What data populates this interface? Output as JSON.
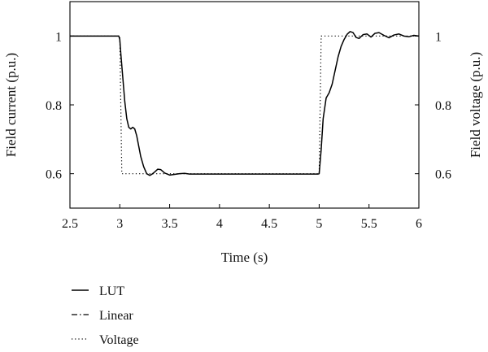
{
  "chart_data": {
    "type": "line",
    "xlabel": "Time (s)",
    "ylabel_left": "Field current (p.u.)",
    "ylabel_right": "Field voltage (p.u.)",
    "xlim": [
      2.5,
      6.0
    ],
    "ylim": [
      0.5,
      1.1
    ],
    "xticks": [
      2.5,
      3,
      3.5,
      4,
      4.5,
      5,
      5.5,
      6
    ],
    "xtick_labels": [
      "2.5",
      "3",
      "3.5",
      "4",
      "4.5",
      "5",
      "5.5",
      "6"
    ],
    "yticks": [
      0.6,
      0.8,
      1.0
    ],
    "ytick_labels": [
      "0.6",
      "0.8",
      "1"
    ],
    "grid": false,
    "legend_position": "below-left",
    "series": [
      {
        "name": "LUT",
        "style": "solid",
        "color": "#000000",
        "x": [
          2.5,
          2.99,
          3.0,
          3.01,
          3.03,
          3.05,
          3.07,
          3.09,
          3.11,
          3.13,
          3.15,
          3.17,
          3.19,
          3.21,
          3.24,
          3.27,
          3.3,
          3.32,
          3.35,
          3.38,
          3.41,
          3.45,
          3.5,
          3.55,
          3.6,
          3.65,
          3.7,
          3.8,
          4.0,
          4.5,
          4.99,
          5.0,
          5.02,
          5.04,
          5.07,
          5.1,
          5.13,
          5.16,
          5.19,
          5.22,
          5.25,
          5.28,
          5.31,
          5.34,
          5.37,
          5.4,
          5.44,
          5.48,
          5.52,
          5.56,
          5.6,
          5.65,
          5.7,
          5.75,
          5.8,
          5.85,
          5.9,
          5.95,
          6.0
        ],
        "y": [
          1.0,
          1.0,
          0.99,
          0.95,
          0.88,
          0.81,
          0.76,
          0.735,
          0.73,
          0.735,
          0.73,
          0.71,
          0.68,
          0.65,
          0.62,
          0.6,
          0.595,
          0.598,
          0.605,
          0.613,
          0.612,
          0.602,
          0.596,
          0.598,
          0.6,
          0.601,
          0.599,
          0.599,
          0.599,
          0.599,
          0.599,
          0.6,
          0.67,
          0.76,
          0.82,
          0.835,
          0.86,
          0.9,
          0.94,
          0.97,
          0.99,
          1.005,
          1.013,
          1.01,
          0.996,
          0.993,
          1.004,
          1.006,
          0.997,
          1.008,
          1.01,
          1.002,
          0.995,
          1.003,
          1.006,
          1.0,
          0.998,
          1.002,
          1.0
        ]
      },
      {
        "name": "Linear",
        "style": "dashdot",
        "color": "#000000",
        "x": [],
        "y": []
      },
      {
        "name": "Voltage",
        "style": "dotted",
        "color": "#000000",
        "x": [
          2.5,
          3.0,
          3.02,
          5.0,
          5.02,
          6.0
        ],
        "y": [
          1.0,
          1.0,
          0.6,
          0.6,
          1.0,
          1.0
        ]
      }
    ]
  }
}
